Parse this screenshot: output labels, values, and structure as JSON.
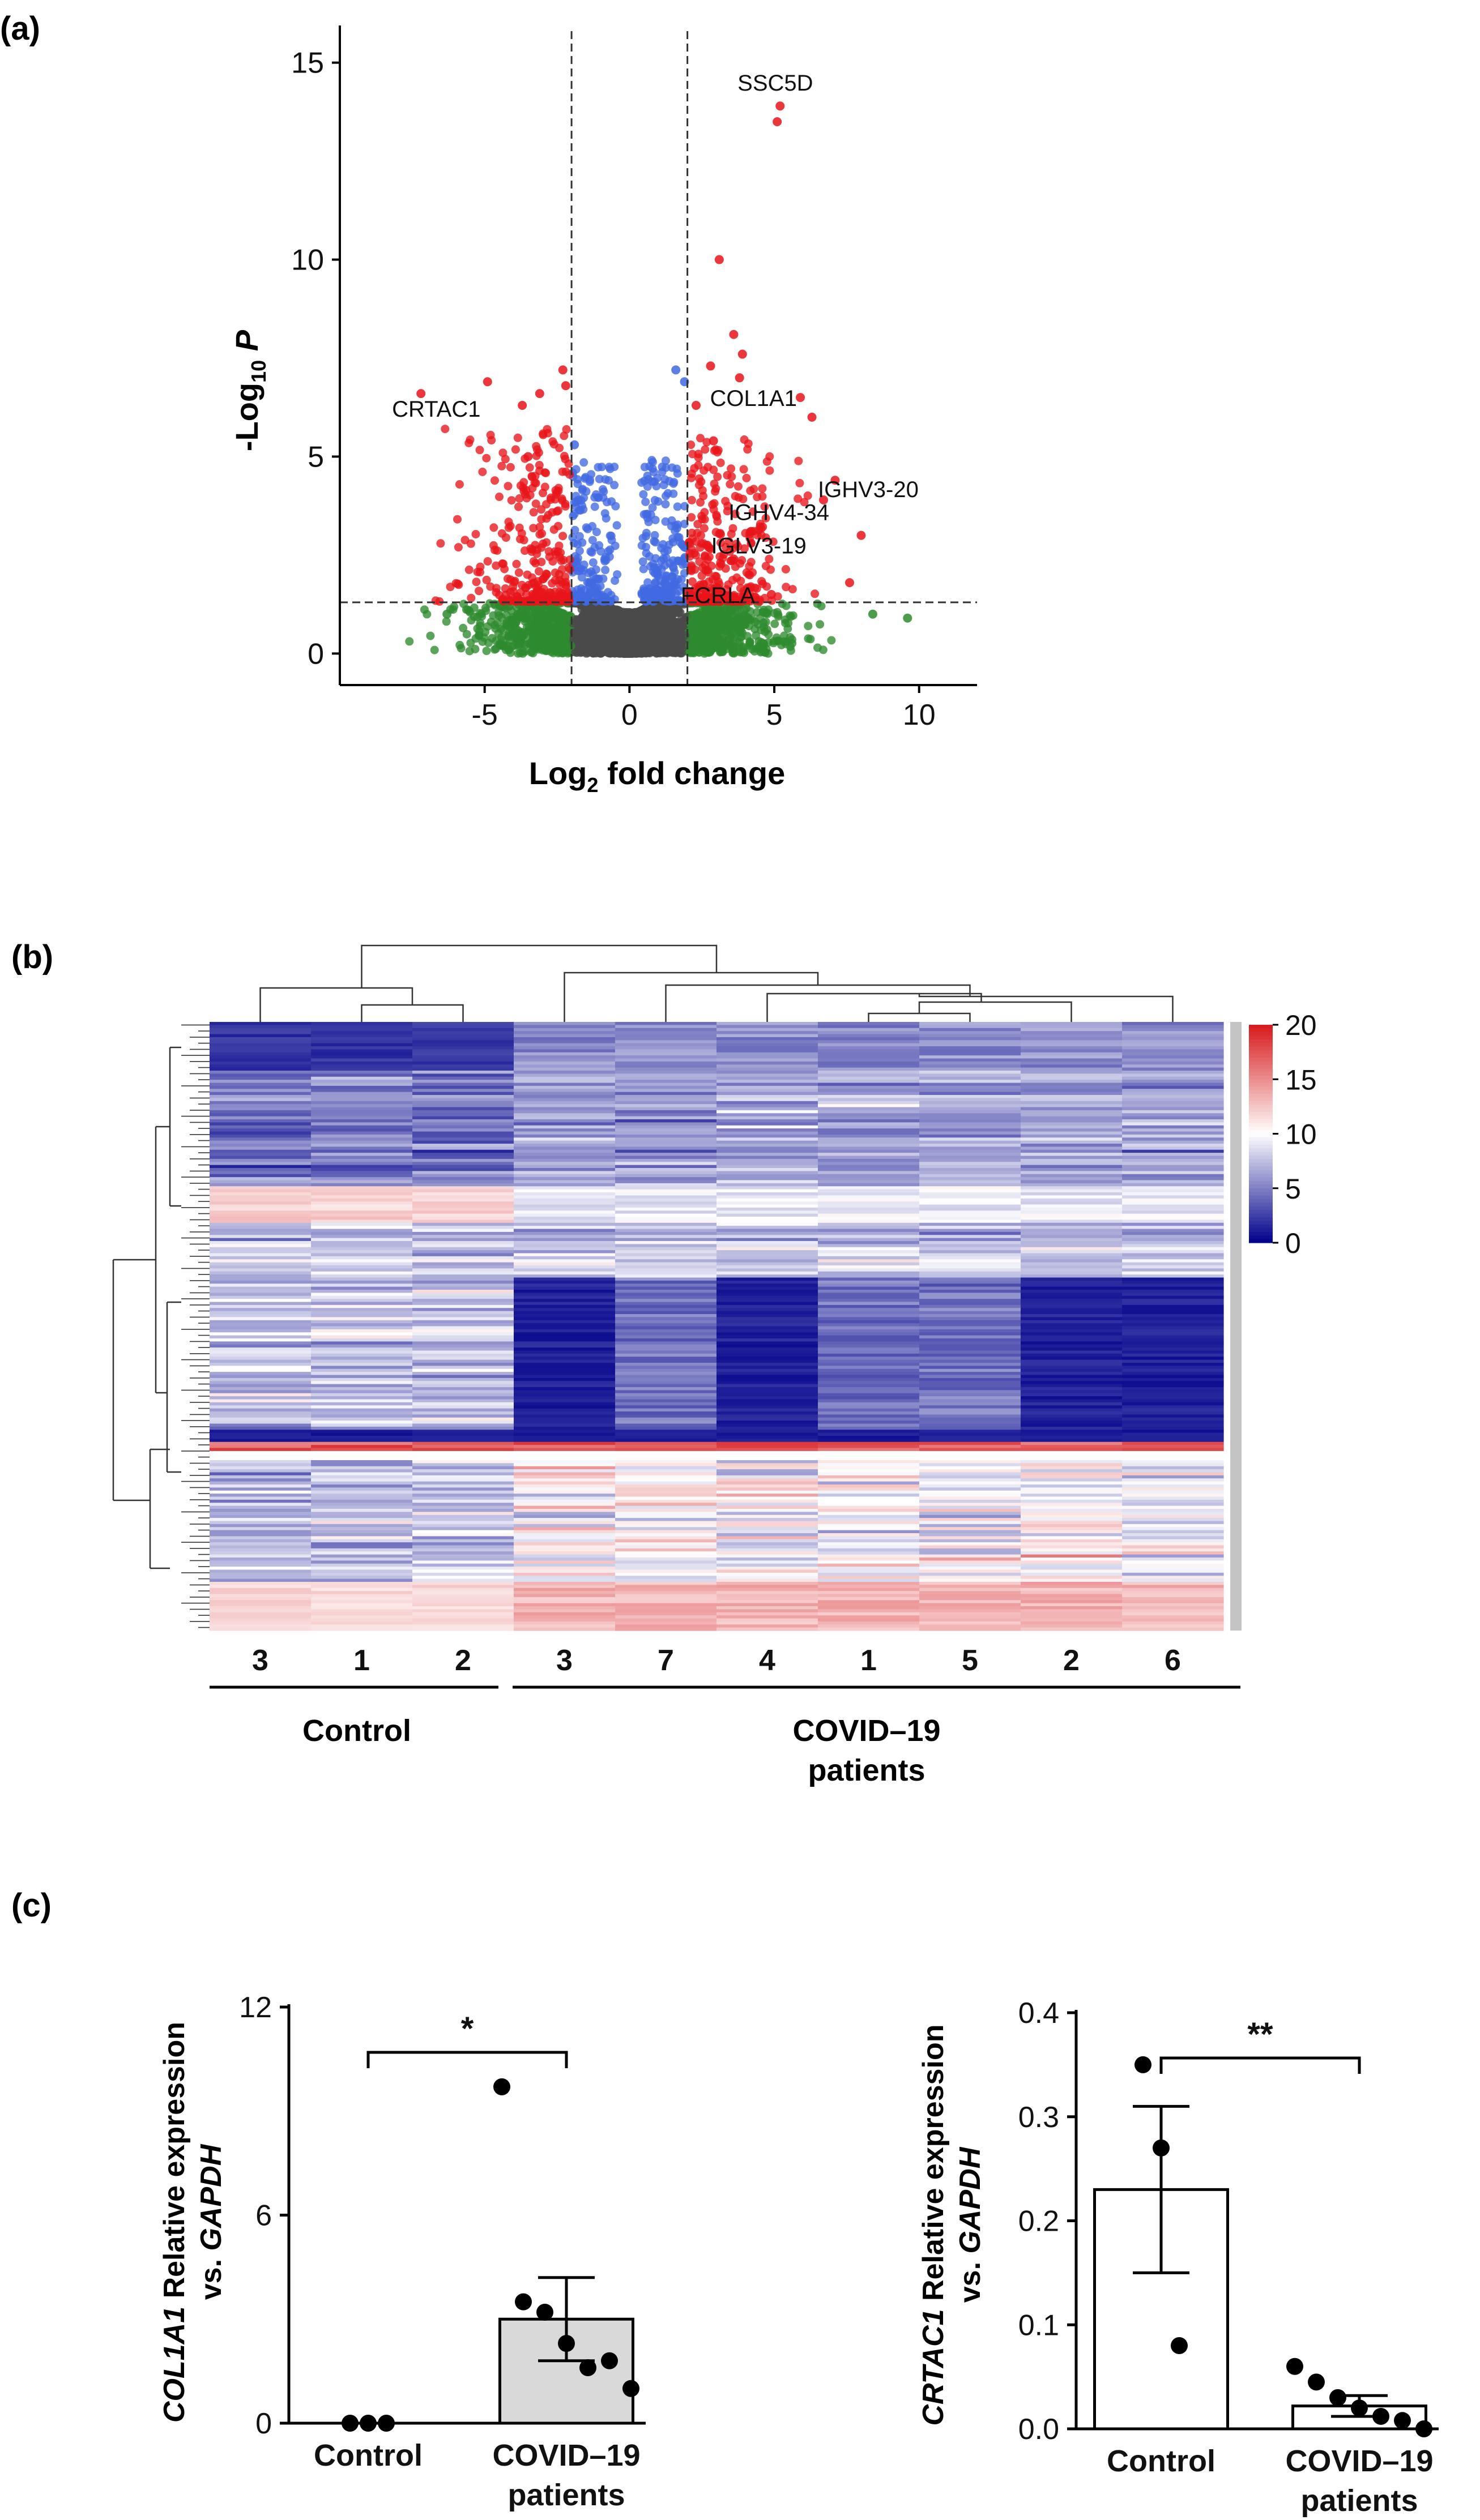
{
  "panel_labels": {
    "a": "(a)",
    "b": "(b)",
    "c": "(c)"
  },
  "chart_data": [
    {
      "id": "volcano",
      "type": "scatter",
      "title": "",
      "xlabel": "Log2 fold change",
      "xlabel_parts": {
        "pre": "Log",
        "sub": "2",
        "post": " fold change"
      },
      "ylabel": "-Log10 P",
      "ylabel_parts": {
        "pre": "-Log",
        "sub": "10",
        "post": " P"
      },
      "xlim": [
        -10,
        12
      ],
      "ylim": [
        -0.8,
        15.8
      ],
      "xticks": [
        -5,
        0,
        5,
        10
      ],
      "yticks": [
        0,
        5,
        10,
        15
      ],
      "thresholds": {
        "log2fc": [
          -2,
          2
        ],
        "neglog10p": 1.3
      },
      "colors": {
        "ns": "#4a4a4a",
        "fc_only": "#2e8b2e",
        "p_only": "#4169e1",
        "both": "#e8141a"
      },
      "labeled_points": [
        {
          "gene": "SSC5D",
          "x": 5.1,
          "y": 13.5
        },
        {
          "gene": "CRTAC1",
          "x": -3.7,
          "y": 6.3
        },
        {
          "gene": "COL1A1",
          "x": 6.3,
          "y": 6.0
        },
        {
          "gene": "IGHV3-20",
          "x": 6.7,
          "y": 3.9
        },
        {
          "gene": "IGHV4-34",
          "x": 4.2,
          "y": 3.1
        },
        {
          "gene": "IGLV3-19",
          "x": 3.6,
          "y": 2.4
        },
        {
          "gene": "FCRLA",
          "x": 4.9,
          "y": 1.5
        }
      ],
      "extra_points": [
        {
          "x": 3.1,
          "y": 10.0
        },
        {
          "x": 3.6,
          "y": 8.1
        },
        {
          "x": 2.8,
          "y": 7.3
        },
        {
          "x": 3.8,
          "y": 7.0
        },
        {
          "x": -4.9,
          "y": 6.9
        },
        {
          "x": -2.3,
          "y": 7.2
        },
        {
          "x": -7.2,
          "y": 6.6
        },
        {
          "x": -3.1,
          "y": 6.6
        },
        {
          "x": 5.9,
          "y": 6.5
        },
        {
          "x": 7.1,
          "y": 4.4
        },
        {
          "x": 8.0,
          "y": 3.0
        },
        {
          "x": 7.6,
          "y": 1.8
        },
        {
          "x": 2.9,
          "y": 5.4
        },
        {
          "x": -2.2,
          "y": 6.8
        },
        {
          "x": 1.9,
          "y": 6.9
        },
        {
          "x": 1.6,
          "y": 7.2
        },
        {
          "x": -1.9,
          "y": 5.3
        },
        {
          "x": 2.3,
          "y": 6.3
        },
        {
          "x": -3.5,
          "y": 5.0
        },
        {
          "x": 5.2,
          "y": 13.9
        },
        {
          "x": 3.9,
          "y": 7.6
        },
        {
          "x": 9.6,
          "y": 0.9
        },
        {
          "x": 8.4,
          "y": 1.0
        },
        {
          "x": -6.3,
          "y": 1.0
        }
      ]
    },
    {
      "id": "heatmap",
      "type": "heatmap",
      "columns": [
        "3",
        "1",
        "2",
        "3",
        "7",
        "4",
        "1",
        "5",
        "2",
        "6"
      ],
      "groups": [
        {
          "name": "Control",
          "start": 0,
          "end": 2
        },
        {
          "name": "COVID–19",
          "name2": "patients",
          "start": 3,
          "end": 9
        }
      ],
      "colorbar": {
        "min": 0,
        "max": 20,
        "ticks": [
          20,
          15,
          10,
          5,
          0
        ],
        "low": "#00008b",
        "mid": "#ffffff",
        "high": "#d7191c"
      },
      "rows": 200
    },
    {
      "id": "col1a1",
      "type": "bar",
      "title": "",
      "ylabel_gene": "COL1A1",
      "ylabel_mid": " Relative expression",
      "ylabel_line2_pre": "vs. ",
      "ylabel_line2_gene": "GAPDH",
      "categories": [
        "Control",
        "COVID–19"
      ],
      "category_line2": [
        "",
        "patients"
      ],
      "values": [
        0.0,
        3.0
      ],
      "errors": [
        0.0,
        1.2
      ],
      "points": [
        [
          0.0,
          0.0,
          0.0
        ],
        [
          9.7,
          3.5,
          3.2,
          2.3,
          1.6,
          1.8,
          1.0
        ]
      ],
      "ylim": [
        0,
        12
      ],
      "yticks": [
        0,
        6,
        12
      ],
      "bar_fills": [
        "#ffffff",
        "#d9d9d9"
      ],
      "significance": "*"
    },
    {
      "id": "crtac1",
      "type": "bar",
      "title": "",
      "ylabel_gene": "CRTAC1",
      "ylabel_mid": " Relative expression",
      "ylabel_line2_pre": "vs. ",
      "ylabel_line2_gene": "GAPDH",
      "categories": [
        "Control",
        "COVID–19"
      ],
      "category_line2": [
        "",
        "patients"
      ],
      "values": [
        0.23,
        0.022
      ],
      "errors": [
        0.08,
        0.01
      ],
      "points": [
        [
          0.35,
          0.27,
          0.08
        ],
        [
          0.06,
          0.045,
          0.03,
          0.02,
          0.012,
          0.008,
          0.0
        ]
      ],
      "ylim": [
        0,
        0.4
      ],
      "yticks": [
        0.0,
        0.1,
        0.2,
        0.3,
        0.4
      ],
      "ytick_labels": [
        "0.0",
        "0.1",
        "0.2",
        "0.3",
        "0.4"
      ],
      "bar_fills": [
        "#ffffff",
        "#ffffff"
      ],
      "significance": "**"
    }
  ]
}
